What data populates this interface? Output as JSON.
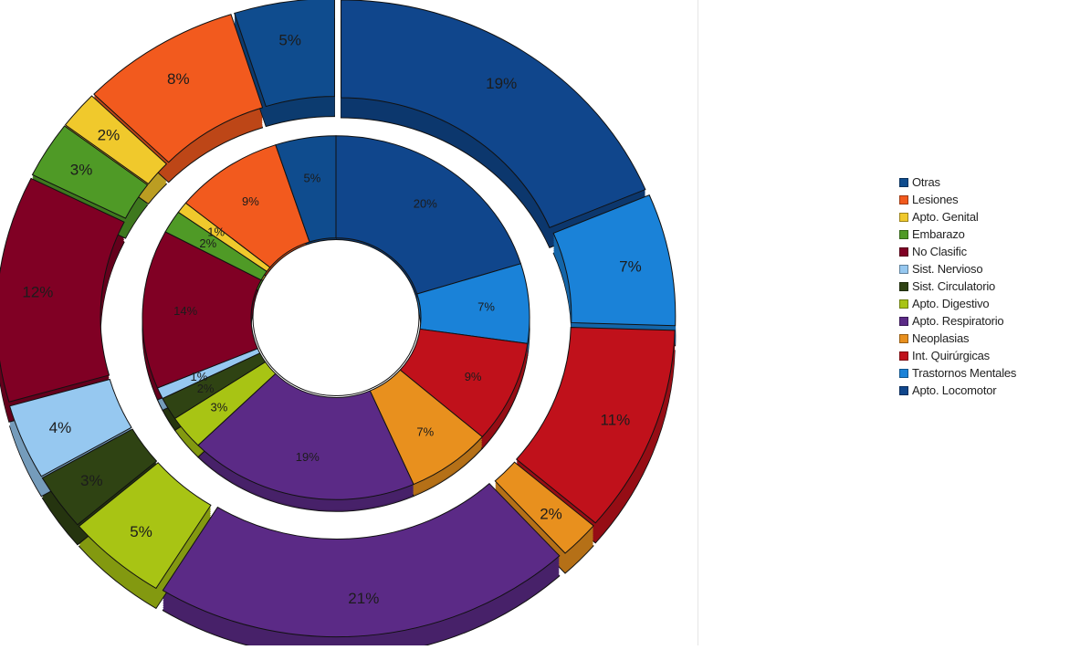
{
  "chart_data": {
    "type": "pie",
    "variant": "double donut, 3D",
    "title": "",
    "legend_position": "right",
    "legend": [
      {
        "label": "Otras",
        "color": "#0f4c8e"
      },
      {
        "label": "Lesiones",
        "color": "#f25a1e"
      },
      {
        "label": "Apto. Genital",
        "color": "#f0c92c"
      },
      {
        "label": "Embarazo",
        "color": "#4f9a26"
      },
      {
        "label": "No Clasific",
        "color": "#800024"
      },
      {
        "label": "Sist. Nervioso",
        "color": "#96c8f0"
      },
      {
        "label": "Sist. Circulatorio",
        "color": "#2f4313"
      },
      {
        "label": "Apto. Digestivo",
        "color": "#a8c414"
      },
      {
        "label": "Apto. Respiratorio",
        "color": "#5b2a86"
      },
      {
        "label": "Neoplasias",
        "color": "#e8901e"
      },
      {
        "label": "Int. Quirúrgicas",
        "color": "#c0111b"
      },
      {
        "label": "Trastornos Mentales",
        "color": "#1a82d8"
      },
      {
        "label": "Apto. Locomotor",
        "color": "#10468c"
      }
    ],
    "series": [
      {
        "ring": "inner",
        "values": [
          {
            "category": "Apto. Locomotor",
            "value": 20,
            "label": "20%"
          },
          {
            "category": "Trastornos Mentales",
            "value": 7,
            "label": "7%"
          },
          {
            "category": "Int. Quirúrgicas",
            "value": 9,
            "label": "9%"
          },
          {
            "category": "Neoplasias",
            "value": 7,
            "label": "7%"
          },
          {
            "category": "Apto. Respiratorio",
            "value": 19,
            "label": "19%"
          },
          {
            "category": "Apto. Digestivo",
            "value": 3,
            "label": "3%"
          },
          {
            "category": "Sist. Circulatorio",
            "value": 2,
            "label": "2%"
          },
          {
            "category": "Sist. Nervioso",
            "value": 1,
            "label": "1%"
          },
          {
            "category": "No Clasific",
            "value": 14,
            "label": "14%"
          },
          {
            "category": "Embarazo",
            "value": 2,
            "label": "2%"
          },
          {
            "category": "Apto. Genital",
            "value": 1,
            "label": "1%"
          },
          {
            "category": "Lesiones",
            "value": 9,
            "label": "9%"
          },
          {
            "category": "Otras",
            "value": 5,
            "label": "5%"
          }
        ]
      },
      {
        "ring": "outer",
        "values": [
          {
            "category": "Apto. Locomotor",
            "value": 19,
            "label": "19%"
          },
          {
            "category": "Trastornos Mentales",
            "value": 7,
            "label": "7%"
          },
          {
            "category": "Int. Quirúrgicas",
            "value": 11,
            "label": "11%"
          },
          {
            "category": "Neoplasias",
            "value": 2,
            "label": "2%"
          },
          {
            "category": "Apto. Respiratorio",
            "value": 21,
            "label": "21%"
          },
          {
            "category": "Apto. Digestivo",
            "value": 5,
            "label": "5%"
          },
          {
            "category": "Sist. Circulatorio",
            "value": 3,
            "label": "3%"
          },
          {
            "category": "Sist. Nervioso",
            "value": 4,
            "label": "4%"
          },
          {
            "category": "No Clasific",
            "value": 12,
            "label": "12%"
          },
          {
            "category": "Embarazo",
            "value": 3,
            "label": "3%"
          },
          {
            "category": "Apto. Genital",
            "value": 2,
            "label": "2%"
          },
          {
            "category": "Lesiones",
            "value": 8,
            "label": "8%"
          },
          {
            "category": "Otras",
            "value": 5,
            "label": "5%"
          }
        ]
      }
    ]
  }
}
